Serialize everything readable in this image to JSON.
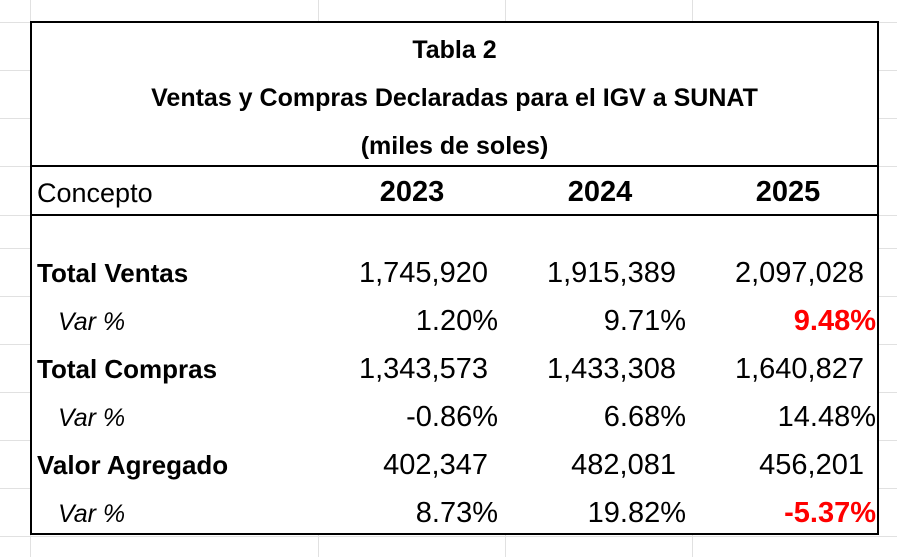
{
  "title": {
    "line1": "Tabla 2",
    "line2": "Ventas y Compras Declaradas para el  IGV  a SUNAT",
    "line3": "(miles de soles)"
  },
  "header": {
    "concept": "Concepto",
    "years": [
      "2023",
      "2024",
      "2025"
    ]
  },
  "rows": [
    {
      "label": "Total Ventas",
      "values": [
        "1,745,920",
        "1,915,389",
        "2,097,028"
      ]
    },
    {
      "label": "Var %",
      "values": [
        "1.20%",
        "9.71%",
        "9.48%"
      ],
      "highlight": [
        false,
        false,
        true
      ]
    },
    {
      "label": "Total Compras",
      "values": [
        "1,343,573",
        "1,433,308",
        "1,640,827"
      ]
    },
    {
      "label": "Var %",
      "values": [
        "-0.86%",
        "6.68%",
        "14.48%"
      ],
      "highlight": [
        false,
        false,
        false
      ]
    },
    {
      "label": "Valor Agregado",
      "values": [
        "402,347",
        "482,081",
        "456,201"
      ]
    },
    {
      "label": "Var %",
      "values": [
        "8.73%",
        "19.82%",
        "-5.37%"
      ],
      "highlight": [
        false,
        false,
        true
      ]
    }
  ],
  "colors": {
    "highlight": "#ff0000",
    "gridline": "#e1e1e1"
  }
}
